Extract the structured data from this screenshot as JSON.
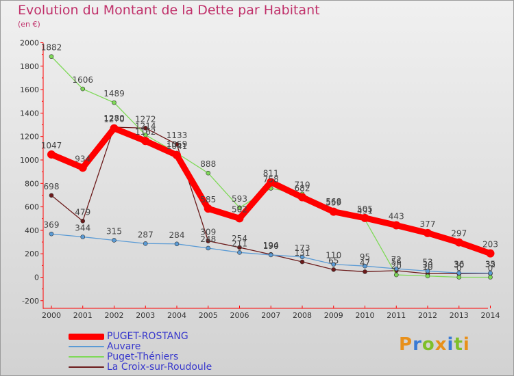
{
  "page": {
    "title": "Evolution du Montant de la Dette par Habitant",
    "subtitle": "(en €)",
    "logo_text": "Proxiti"
  },
  "chart_data": {
    "type": "line",
    "title": "Evolution du Montant de la Dette par Habitant",
    "subtitle": "(en €)",
    "x": [
      "2000",
      "2001",
      "2002",
      "2003",
      "2004",
      "2005",
      "2006",
      "2007",
      "2008",
      "2009",
      "2010",
      "2011",
      "2012",
      "2013",
      "2014"
    ],
    "yticks": [
      -200,
      0,
      200,
      400,
      600,
      800,
      1000,
      1200,
      1400,
      1600,
      1800,
      2000
    ],
    "ylim": [
      -200,
      2000
    ],
    "grid": false,
    "legend_position": "bottom-left",
    "series": [
      {
        "name": "PUGET-ROSTANG",
        "color": "#ff0000",
        "values": [
          1047,
          934,
          1270,
          1162,
          1041,
          585,
          502,
          811,
          682,
          559,
          505,
          443,
          377,
          297,
          203
        ]
      },
      {
        "name": "Auvare",
        "color": "#5b9bd5",
        "values": [
          369,
          344,
          315,
          287,
          284,
          248,
          211,
          190,
          173,
          110,
          95,
          72,
          53,
          36,
          35
        ]
      },
      {
        "name": "Puget-Théniers",
        "color": "#7ed957",
        "values": [
          1882,
          1606,
          1489,
          1214,
          1059,
          888,
          593,
          758,
          710,
          568,
          491,
          20,
          10,
          0,
          0
        ]
      },
      {
        "name": "La Croix-sur-Roudoule",
        "color": "#6b1a1a",
        "values": [
          698,
          479,
          1280,
          1272,
          1133,
          309,
          254,
          194,
          131,
          65,
          47,
          56,
          30,
          30,
          32
        ]
      }
    ]
  }
}
